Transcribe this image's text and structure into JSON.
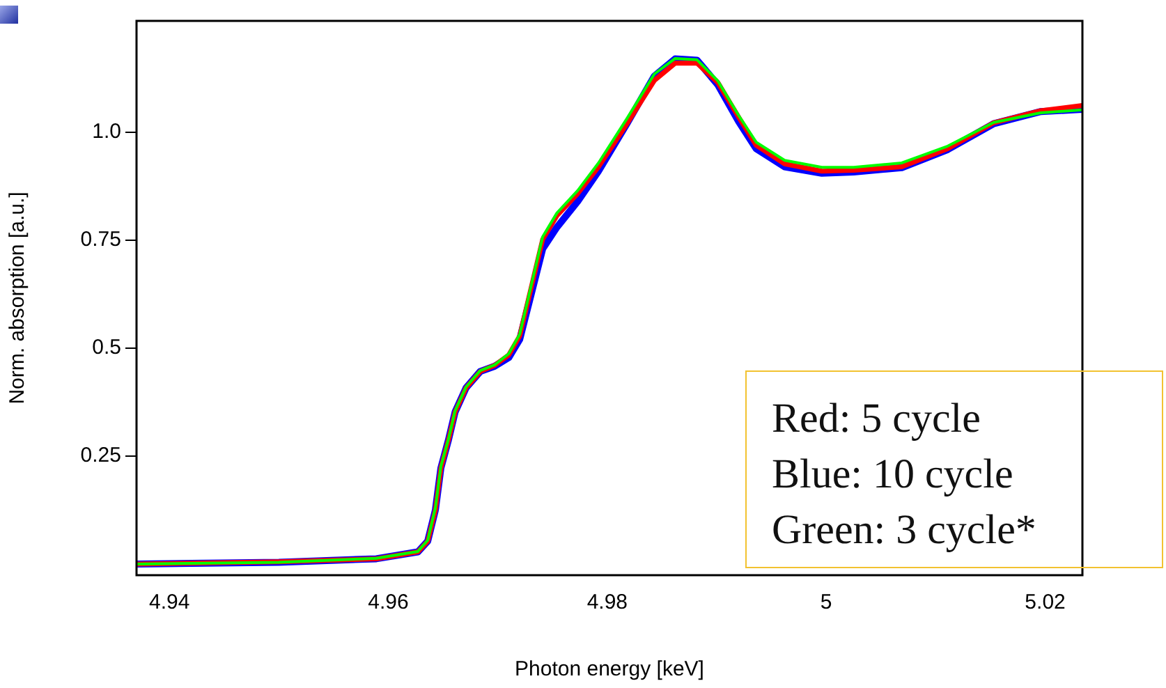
{
  "chart_data": {
    "type": "line",
    "xlabel": "Photon energy [keV]",
    "ylabel": "Norm. absorption [a.u.]",
    "x": [
      4.937,
      4.95,
      4.9589,
      4.9627,
      4.9636,
      4.9643,
      4.9648,
      4.9655,
      4.9661,
      4.9671,
      4.9684,
      4.9697,
      4.971,
      4.972,
      4.9741,
      4.9754,
      4.9773,
      4.9792,
      4.9818,
      4.9843,
      4.9862,
      4.9882,
      4.9901,
      4.992,
      4.9936,
      4.9962,
      4.9996,
      5.0025,
      5.0069,
      5.0111,
      5.0153,
      5.0196,
      5.0234
    ],
    "series": [
      {
        "color": "#ff0000",
        "values": [
          0.0,
          0.005,
          0.012,
          0.028,
          0.053,
          0.125,
          0.222,
          0.288,
          0.352,
          0.408,
          0.446,
          0.46,
          0.484,
          0.528,
          0.752,
          0.807,
          0.858,
          0.92,
          1.02,
          1.12,
          1.16,
          1.16,
          1.115,
          1.035,
          0.97,
          0.927,
          0.91,
          0.912,
          0.92,
          0.962,
          1.022,
          1.05,
          1.062
        ]
      },
      {
        "color": "#0000ff",
        "values": [
          0.0,
          0.004,
          0.012,
          0.028,
          0.053,
          0.125,
          0.222,
          0.288,
          0.352,
          0.408,
          0.446,
          0.458,
          0.478,
          0.52,
          0.73,
          0.78,
          0.84,
          0.91,
          1.02,
          1.13,
          1.17,
          1.167,
          1.11,
          1.025,
          0.962,
          0.92,
          0.905,
          0.908,
          0.918,
          0.96,
          1.02,
          1.048,
          1.053
        ]
      },
      {
        "color": "#00ff00",
        "values": [
          0.0,
          0.004,
          0.013,
          0.029,
          0.055,
          0.13,
          0.226,
          0.29,
          0.355,
          0.41,
          0.448,
          0.461,
          0.487,
          0.532,
          0.758,
          0.813,
          0.865,
          0.929,
          1.032,
          1.135,
          1.171,
          1.168,
          1.119,
          1.039,
          0.977,
          0.935,
          0.919,
          0.919,
          0.929,
          0.968,
          1.023,
          1.045,
          1.052
        ]
      }
    ],
    "xlim": [
      4.937,
      5.0234
    ],
    "ylim": [
      -0.026,
      1.258
    ],
    "xticks": [
      4.94,
      4.96,
      4.98,
      {
        "value": 5,
        "label": "5"
      },
      5.02
    ],
    "yticks": [
      0.25,
      0.5,
      0.75,
      {
        "value": 1,
        "label": "1.0"
      }
    ],
    "grid": false,
    "legend": false,
    "marker": "none",
    "line_style": "solid",
    "annotations": [
      "Red: 5 cycle",
      "Blue: 10 cycle",
      "Green: 3 cycle*"
    ]
  }
}
